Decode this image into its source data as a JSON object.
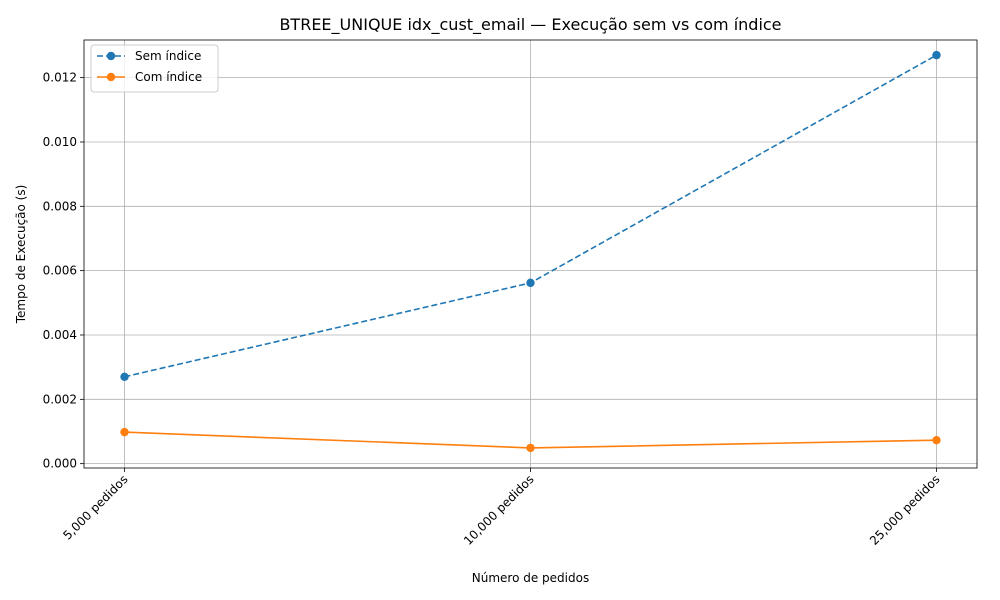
{
  "chart_data": {
    "type": "line",
    "title": "BTREE_UNIQUE idx_cust_email — Execução sem vs com índice",
    "xlabel": "Número de pedidos",
    "ylabel": "Tempo de Execução (s)",
    "categories": [
      "5,000 pedidos",
      "10,000 pedidos",
      "25,000 pedidos"
    ],
    "ylim": [
      -0.000135,
      0.01317
    ],
    "yticks": [
      0.0,
      0.002,
      0.004,
      0.006,
      0.008,
      0.01,
      0.012
    ],
    "ytick_labels": [
      "0.000",
      "0.002",
      "0.004",
      "0.006",
      "0.008",
      "0.010",
      "0.012"
    ],
    "grid": true,
    "legend_position": "top-left",
    "series": [
      {
        "name": "Sem índice",
        "values": [
          0.0027,
          0.00562,
          0.0127
        ],
        "color": "#1f77b4",
        "line_style": "dashed",
        "marker": "circle"
      },
      {
        "name": "Com índice",
        "values": [
          0.00098,
          0.00049,
          0.00073
        ],
        "color": "#ff7f0e",
        "line_style": "solid",
        "marker": "circle"
      }
    ]
  }
}
